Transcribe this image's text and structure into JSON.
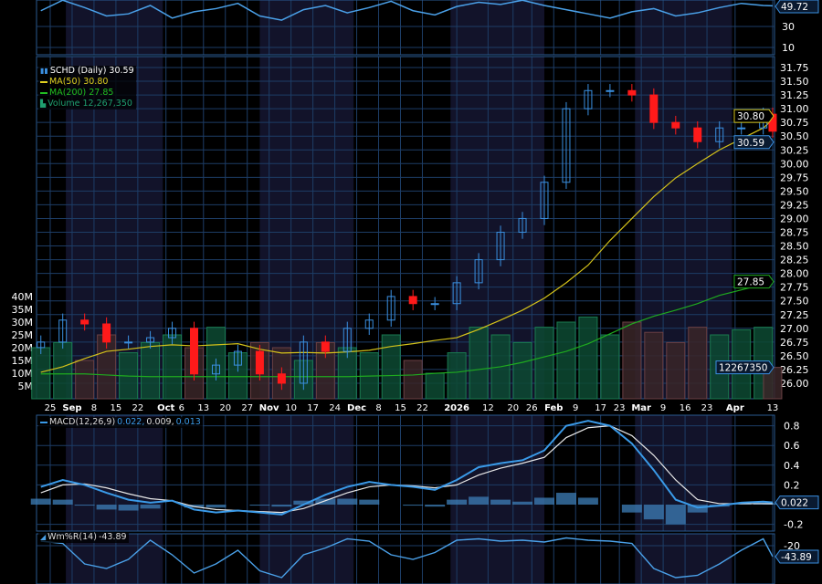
{
  "colors": {
    "up": "#3a8fe0",
    "down": "#ff1a1a",
    "ma50": "#d4c21a",
    "ma200": "#1faa1f",
    "vol_up": "#0d4a33",
    "vol_down": "#3a2628",
    "grid": "#1d3d66",
    "shade": "#12132a",
    "macd": "#3a9ae8",
    "signal": "#e8e8e8",
    "hist": "#3d7fb8",
    "wr": "#4aa0e8"
  },
  "legend": {
    "price": "SCHD (Daily) 30.59",
    "ma50": "MA(50) 30.80",
    "ma200": "MA(200) 27.85",
    "volume": "Volume 12,267,350"
  },
  "badges": {
    "top": "49.72",
    "ma50": "30.80",
    "close": "30.59",
    "ma200": "27.85",
    "volume": "12267350",
    "macd": "0.022",
    "wr": "-43.89"
  },
  "macd_legend": {
    "name": "MACD(12,26,9)",
    "macd": "0.022,",
    "signal": "0.009,",
    "hist": "0.013"
  },
  "wr_legend": {
    "name": "Wm%R(14)",
    "value": "-43.89"
  },
  "chart_data": {
    "type": "candlestick",
    "shaded_months": [
      [
        "2025-08-30",
        "2025-09-30"
      ],
      [
        "2025-10-31",
        "2025-11-30"
      ],
      [
        "2025-12-31",
        "2026-01-30"
      ],
      [
        "2026-02-28",
        "2026-03-31"
      ]
    ],
    "date_axis": [
      {
        "label": "25",
        "date": "2025-08-25"
      },
      {
        "label": "Sep",
        "date": "2025-09-01",
        "bold": true
      },
      {
        "label": "8",
        "date": "2025-09-08"
      },
      {
        "label": "15",
        "date": "2025-09-15"
      },
      {
        "label": "22",
        "date": "2025-09-22"
      },
      {
        "label": "Oct",
        "date": "2025-10-01",
        "bold": true
      },
      {
        "label": "6",
        "date": "2025-10-06"
      },
      {
        "label": "13",
        "date": "2025-10-13"
      },
      {
        "label": "20",
        "date": "2025-10-20"
      },
      {
        "label": "27",
        "date": "2025-10-27"
      },
      {
        "label": "Nov",
        "date": "2025-11-03",
        "bold": true
      },
      {
        "label": "10",
        "date": "2025-11-10"
      },
      {
        "label": "17",
        "date": "2025-11-17"
      },
      {
        "label": "24",
        "date": "2025-11-24"
      },
      {
        "label": "Dec",
        "date": "2025-12-01",
        "bold": true
      },
      {
        "label": "8",
        "date": "2025-12-08"
      },
      {
        "label": "15",
        "date": "2025-12-15"
      },
      {
        "label": "22",
        "date": "2025-12-22"
      },
      {
        "label": "2026",
        "date": "2026-01-02",
        "bold": true
      },
      {
        "label": "12",
        "date": "2026-01-12"
      },
      {
        "label": "20",
        "date": "2026-01-20"
      },
      {
        "label": "26",
        "date": "2026-01-26"
      },
      {
        "label": "Feb",
        "date": "2026-02-02",
        "bold": true
      },
      {
        "label": "9",
        "date": "2026-02-09"
      },
      {
        "label": "17",
        "date": "2026-02-17"
      },
      {
        "label": "23",
        "date": "2026-02-23"
      },
      {
        "label": "Mar",
        "date": "2026-03-02",
        "bold": true
      },
      {
        "label": "9",
        "date": "2026-03-09"
      },
      {
        "label": "16",
        "date": "2026-03-16"
      },
      {
        "label": "23",
        "date": "2026-03-23"
      },
      {
        "label": "Apr",
        "date": "2026-04-01",
        "bold": true
      },
      {
        "label": "13",
        "date": "2026-04-13"
      }
    ],
    "price_ticks": [
      "31.75",
      "31.50",
      "31.25",
      "31.00",
      "30.75",
      "30.50",
      "30.25",
      "30.00",
      "29.75",
      "29.50",
      "29.25",
      "29.00",
      "28.75",
      "28.50",
      "28.25",
      "28.00",
      "27.75",
      "27.50",
      "27.25",
      "27.00",
      "26.75",
      "26.50",
      "26.25",
      "26.00"
    ],
    "volume_ticks": [
      "40M",
      "35M",
      "30M",
      "25M",
      "20M",
      "15M",
      "10M",
      "5M"
    ],
    "top_ticks": [
      "30",
      "10"
    ],
    "macd_ticks": [
      "0.8",
      "0.6",
      "0.4",
      "0.2",
      "-0.2"
    ],
    "wr_ticks": [
      "-20"
    ],
    "dates": [
      "2025-08-22",
      "2025-08-29",
      "2025-09-05",
      "2025-09-12",
      "2025-09-19",
      "2025-09-26",
      "2025-10-03",
      "2025-10-10",
      "2025-10-17",
      "2025-10-24",
      "2025-10-31",
      "2025-11-07",
      "2025-11-14",
      "2025-11-21",
      "2025-11-28",
      "2025-12-05",
      "2025-12-12",
      "2025-12-19",
      "2025-12-26",
      "2026-01-02",
      "2026-01-09",
      "2026-01-16",
      "2026-01-23",
      "2026-01-30",
      "2026-02-06",
      "2026-02-13",
      "2026-02-20",
      "2026-02-27",
      "2026-03-06",
      "2026-03-13",
      "2026-03-20",
      "2026-03-27",
      "2026-04-03",
      "2026-04-10",
      "2026-04-13"
    ],
    "close": [
      26.75,
      27.15,
      27.08,
      26.75,
      26.75,
      26.83,
      27.0,
      26.17,
      26.33,
      26.58,
      26.17,
      26.0,
      26.75,
      26.58,
      27.0,
      27.15,
      27.58,
      27.45,
      27.45,
      27.83,
      28.25,
      28.75,
      29.0,
      29.66,
      31.0,
      31.33,
      31.33,
      31.25,
      30.75,
      30.65,
      30.4,
      30.65,
      30.65,
      30.9,
      30.59
    ],
    "ma50": [
      26.2,
      26.3,
      26.45,
      26.58,
      26.62,
      26.67,
      26.7,
      26.68,
      26.7,
      26.72,
      26.62,
      26.55,
      26.56,
      26.55,
      26.57,
      26.6,
      26.67,
      26.72,
      26.78,
      26.83,
      26.98,
      27.15,
      27.33,
      27.55,
      27.83,
      28.15,
      28.6,
      29.0,
      29.4,
      29.74,
      30.0,
      30.25,
      30.45,
      30.65,
      30.8
    ],
    "ma200": [
      26.17,
      26.17,
      26.17,
      26.15,
      26.13,
      26.12,
      26.12,
      26.12,
      26.12,
      26.12,
      26.12,
      26.12,
      26.12,
      26.12,
      26.12,
      26.13,
      26.14,
      26.15,
      26.18,
      26.2,
      26.25,
      26.3,
      26.38,
      26.48,
      26.58,
      26.72,
      26.9,
      27.08,
      27.22,
      27.33,
      27.45,
      27.6,
      27.7,
      27.8,
      27.85
    ],
    "volume_m": [
      20,
      22,
      15,
      25,
      18,
      22,
      25,
      20,
      28,
      18,
      22,
      20,
      15,
      22,
      20,
      18,
      25,
      15,
      10,
      18,
      28,
      25,
      22,
      28,
      30,
      32,
      25,
      30,
      26,
      22,
      28,
      25,
      27,
      28,
      12.27
    ],
    "top_line": [
      45,
      55,
      48,
      40,
      42,
      50,
      38,
      44,
      47,
      52,
      40,
      36,
      46,
      50,
      43,
      48,
      54,
      45,
      41,
      49,
      53,
      51,
      55,
      50,
      46,
      42,
      38,
      44,
      47,
      40,
      43,
      48,
      52,
      50,
      49.72
    ],
    "macd": [
      0.18,
      0.25,
      0.2,
      0.12,
      0.05,
      0.02,
      0.04,
      -0.05,
      -0.08,
      -0.06,
      -0.08,
      -0.1,
      0.0,
      0.1,
      0.18,
      0.23,
      0.2,
      0.18,
      0.15,
      0.25,
      0.38,
      0.42,
      0.45,
      0.55,
      0.8,
      0.85,
      0.8,
      0.62,
      0.35,
      0.05,
      -0.03,
      -0.01,
      0.02,
      0.03,
      0.022
    ],
    "signal": [
      0.12,
      0.2,
      0.21,
      0.17,
      0.11,
      0.06,
      0.04,
      -0.02,
      -0.05,
      -0.06,
      -0.07,
      -0.08,
      -0.04,
      0.04,
      0.12,
      0.18,
      0.2,
      0.19,
      0.17,
      0.2,
      0.3,
      0.37,
      0.42,
      0.48,
      0.68,
      0.78,
      0.8,
      0.7,
      0.5,
      0.25,
      0.05,
      0.01,
      0.01,
      0.01,
      0.009
    ],
    "wr": [
      -10,
      -15,
      -60,
      -70,
      -50,
      -8,
      -40,
      -80,
      -60,
      -30,
      -75,
      -90,
      -40,
      -25,
      -5,
      -10,
      -40,
      -50,
      -35,
      -8,
      -5,
      -10,
      -8,
      -12,
      -3,
      -8,
      -10,
      -15,
      -70,
      -90,
      -85,
      -60,
      -30,
      -5,
      -43.89
    ]
  }
}
